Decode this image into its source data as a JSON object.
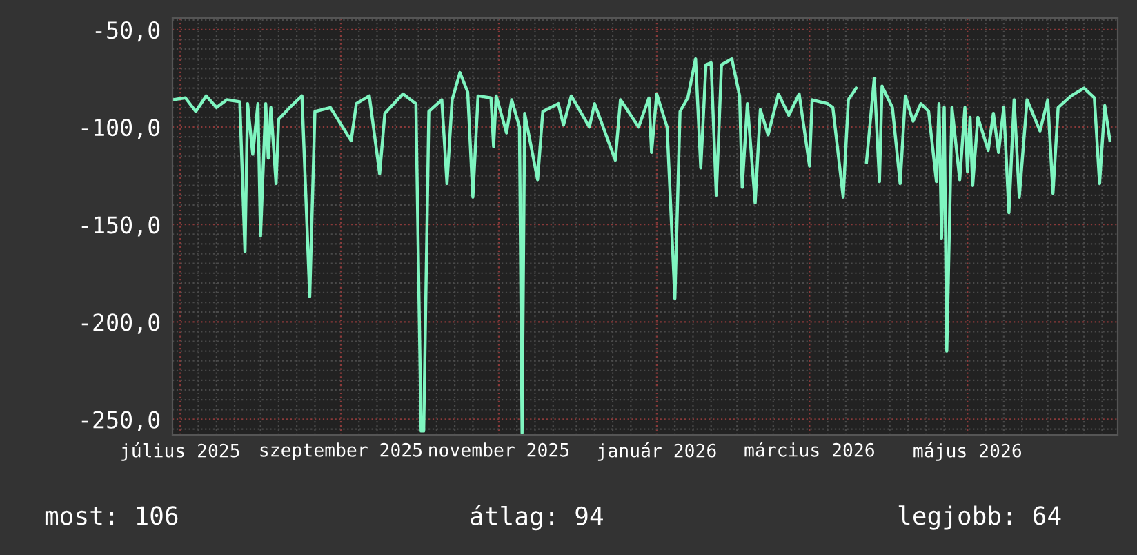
{
  "chart_data": {
    "type": "line",
    "x": [
      "2025-06-28",
      "2025-07-03",
      "2025-07-07",
      "2025-07-11",
      "2025-07-15",
      "2025-07-19",
      "2025-07-24",
      "2025-07-26",
      "2025-07-27",
      "2025-07-29",
      "2025-07-31",
      "2025-08-01",
      "2025-08-03",
      "2025-08-04",
      "2025-08-05",
      "2025-08-07",
      "2025-08-08",
      "2025-08-13",
      "2025-08-17",
      "2025-08-20",
      "2025-08-22",
      "2025-08-28",
      "2025-09-05",
      "2025-09-07",
      "2025-09-12",
      "2025-09-16",
      "2025-09-18",
      "2025-09-25",
      "2025-09-30",
      "2025-10-02",
      "2025-10-03",
      "2025-10-05",
      "2025-10-10",
      "2025-10-12",
      "2025-10-14",
      "2025-10-17",
      "2025-10-20",
      "2025-10-22",
      "2025-10-24",
      "2025-10-29",
      "2025-10-30",
      "2025-10-31",
      "2025-11-04",
      "2025-11-06",
      "2025-11-09",
      "2025-11-10",
      "2025-11-11",
      "2025-11-16",
      "2025-11-18",
      "2025-11-24",
      "2025-11-26",
      "2025-11-29",
      "2025-12-06",
      "2025-12-08",
      "2025-12-16",
      "2025-12-18",
      "2025-12-25",
      "2025-12-29",
      "2025-12-30",
      "2026-01-01",
      "2026-01-05",
      "2026-01-08",
      "2026-01-10",
      "2026-01-13",
      "2026-01-16",
      "2026-01-18",
      "2026-01-20",
      "2026-01-22",
      "2026-01-24",
      "2026-01-26",
      "2026-01-30",
      "2026-02-02",
      "2026-02-03",
      "2026-02-05",
      "2026-02-08",
      "2026-02-10",
      "2026-02-13",
      "2026-02-17",
      "2026-02-21",
      "2026-02-25",
      "2026-03-01",
      "2026-03-02",
      "2026-03-08",
      "2026-03-10",
      "2026-03-14",
      "2026-03-16",
      "2026-03-19",
      "2026-03-21",
      "2026-03-23",
      "2026-03-26",
      "2026-03-28",
      "2026-03-29",
      "2026-04-02",
      "2026-04-05",
      "2026-04-07",
      "2026-04-10",
      "2026-04-13",
      "2026-04-16",
      "2026-04-19",
      "2026-04-20",
      "2026-04-21",
      "2026-04-22",
      "2026-04-23",
      "2026-04-25",
      "2026-04-28",
      "2026-04-30",
      "2026-05-01",
      "2026-05-02",
      "2026-05-03",
      "2026-05-05",
      "2026-05-09",
      "2026-05-11",
      "2026-05-13",
      "2026-05-15",
      "2026-05-17",
      "2026-05-19",
      "2026-05-21",
      "2026-05-24",
      "2026-05-29",
      "2026-06-01",
      "2026-06-03",
      "2026-06-05",
      "2026-06-10",
      "2026-06-15",
      "2026-06-19",
      "2026-06-21",
      "2026-06-23",
      "2026-06-25"
    ],
    "series": [
      {
        "color": "#7ff5c0",
        "values": [
          -86,
          -85,
          -92,
          -84,
          -90,
          -86,
          -87,
          -164,
          -88,
          -114,
          -88,
          -156,
          -88,
          -116,
          -90,
          -129,
          -96,
          -89,
          -84,
          -187,
          -92,
          -90,
          -107,
          -88,
          -84,
          -124,
          -93,
          -83,
          -88,
          -256,
          -256,
          -92,
          -86,
          -129,
          -86,
          -72,
          -82,
          -136,
          -84,
          -85,
          -110,
          -84,
          -103,
          -86,
          -100,
          -257,
          -93,
          -127,
          -92,
          -88,
          -99,
          -84,
          -100,
          -88,
          -117,
          -86,
          -100,
          -85,
          -113,
          -83,
          -100,
          -188,
          -92,
          -85,
          -65,
          -121,
          -68,
          -67,
          -135,
          -68,
          -65,
          -84,
          -131,
          -88,
          -139,
          -91,
          -104,
          -83,
          -94,
          -83,
          -120,
          -86,
          -88,
          -90,
          -136,
          -86,
          -80,
          null,
          -118,
          -75,
          -128,
          -79,
          -90,
          -129,
          -84,
          -97,
          -88,
          -92,
          -128,
          -88,
          -157,
          -90,
          -215,
          -90,
          -127,
          -90,
          -123,
          -95,
          -130,
          -95,
          -112,
          -93,
          -113,
          -90,
          -144,
          -86,
          -136,
          -86,
          -102,
          -86,
          -134,
          -90,
          -84,
          -80,
          -85,
          -129,
          -89,
          -107
        ]
      }
    ],
    "xlim": [
      "2025-06-28",
      "2026-06-28"
    ],
    "xticks": [
      {
        "value": "2025-07-01",
        "label": "július 2025"
      },
      {
        "value": "2025-09-01",
        "label": "szeptember 2025"
      },
      {
        "value": "2025-11-01",
        "label": "november 2025"
      },
      {
        "value": "2026-01-01",
        "label": "január 2026"
      },
      {
        "value": "2026-03-01",
        "label": "március 2026"
      },
      {
        "value": "2026-05-01",
        "label": "május 2026"
      }
    ],
    "ylim": [
      -258,
      -44
    ],
    "yticks": [
      {
        "value": -50,
        "label": "-50,0"
      },
      {
        "value": -100,
        "label": "-100,0"
      },
      {
        "value": -150,
        "label": "-150,0"
      },
      {
        "value": -200,
        "label": "-200,0"
      },
      {
        "value": -250,
        "label": "-250,0"
      }
    ],
    "grid": true,
    "marker": "none",
    "line_style": "solid",
    "annotations": [
      "most: 106",
      "átlag: 94",
      "legjobb: 64"
    ]
  }
}
